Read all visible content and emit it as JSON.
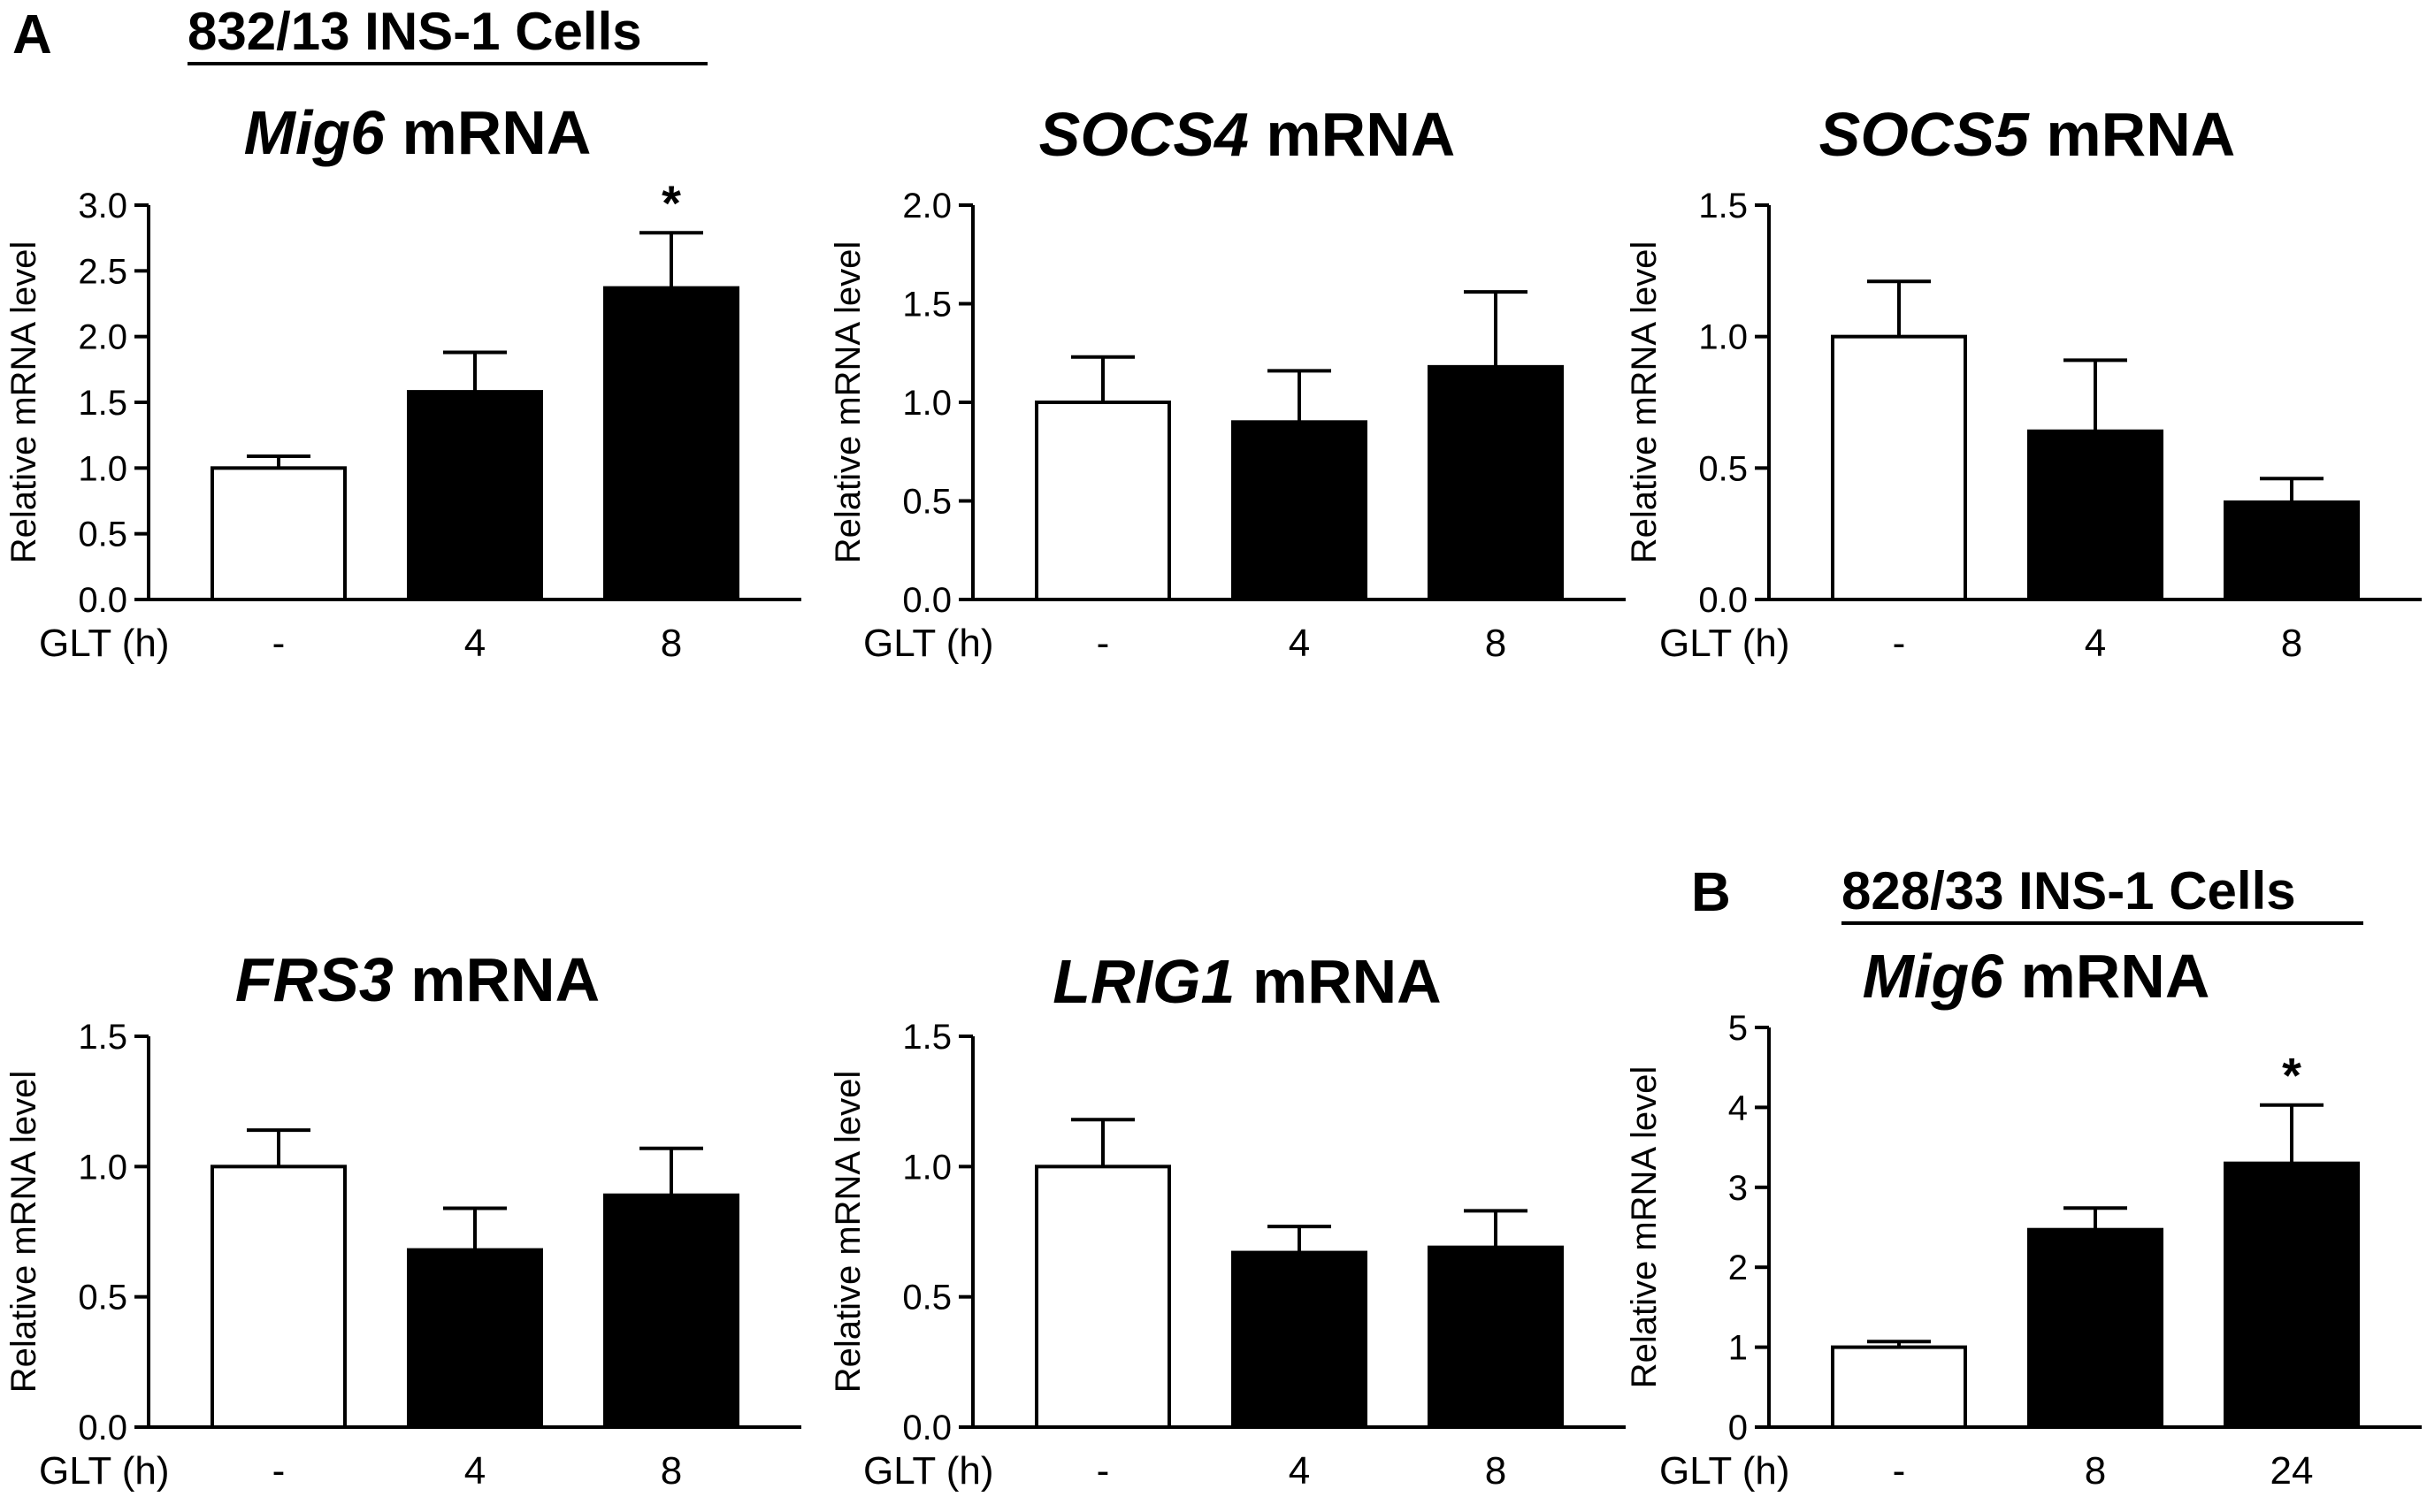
{
  "figure": {
    "panel_a_label": "A",
    "panel_a_header": "832/13 INS-1 Cells",
    "panel_b_label": "B",
    "panel_b_header": "828/33 INS-1 Cells"
  },
  "colors": {
    "control_fill": "#ffffff",
    "treated_fill": "#000000",
    "stroke": "#000000"
  },
  "chart_data": [
    {
      "id": "mig6-832",
      "type": "bar",
      "title_gene": "Mig6",
      "title_suffix": " mRNA",
      "xlabel": "GLT (h)",
      "ylabel": "Relative mRNA level",
      "categories": [
        "-",
        "4",
        "8"
      ],
      "values": [
        1.0,
        1.58,
        2.37
      ],
      "errors": [
        0.09,
        0.3,
        0.42
      ],
      "significance": [
        "",
        "",
        "*"
      ],
      "ylim": [
        0,
        3.0
      ],
      "yticks": [
        "0.0",
        "0.5",
        "1.0",
        "1.5",
        "2.0",
        "2.5",
        "3.0"
      ]
    },
    {
      "id": "socs4-832",
      "type": "bar",
      "title_gene": "SOCS4",
      "title_suffix": " mRNA",
      "xlabel": "GLT (h)",
      "ylabel": "Relative mRNA level",
      "categories": [
        "-",
        "4",
        "8"
      ],
      "values": [
        1.0,
        0.9,
        1.18
      ],
      "errors": [
        0.23,
        0.26,
        0.38
      ],
      "significance": [
        "",
        "",
        ""
      ],
      "ylim": [
        0,
        2.0
      ],
      "yticks": [
        "0.0",
        "0.5",
        "1.0",
        "1.5",
        "2.0"
      ]
    },
    {
      "id": "socs5-832",
      "type": "bar",
      "title_gene": "SOCS5",
      "title_suffix": " mRNA",
      "xlabel": "GLT (h)",
      "ylabel": "Relative mRNA level",
      "categories": [
        "-",
        "4",
        "8"
      ],
      "values": [
        1.0,
        0.64,
        0.37
      ],
      "errors": [
        0.21,
        0.27,
        0.09
      ],
      "significance": [
        "",
        "",
        ""
      ],
      "ylim": [
        0,
        1.5
      ],
      "yticks": [
        "0.0",
        "0.5",
        "1.0",
        "1.5"
      ]
    },
    {
      "id": "frs3-832",
      "type": "bar",
      "title_gene": "FRS3",
      "title_suffix": " mRNA",
      "xlabel": "GLT (h)",
      "ylabel": "Relative mRNA level",
      "categories": [
        "-",
        "4",
        "8"
      ],
      "values": [
        1.0,
        0.68,
        0.89
      ],
      "errors": [
        0.14,
        0.16,
        0.18
      ],
      "significance": [
        "",
        "",
        ""
      ],
      "ylim": [
        0,
        1.5
      ],
      "yticks": [
        "0.0",
        "0.5",
        "1.0",
        "1.5"
      ]
    },
    {
      "id": "lrig1-832",
      "type": "bar",
      "title_gene": "LRIG1",
      "title_suffix": " mRNA",
      "xlabel": "GLT (h)",
      "ylabel": "Relative mRNA level",
      "categories": [
        "-",
        "4",
        "8"
      ],
      "values": [
        1.0,
        0.67,
        0.69
      ],
      "errors": [
        0.18,
        0.1,
        0.14
      ],
      "significance": [
        "",
        "",
        ""
      ],
      "ylim": [
        0,
        1.5
      ],
      "yticks": [
        "0.0",
        "0.5",
        "1.0",
        "1.5"
      ]
    },
    {
      "id": "mig6-828",
      "type": "bar",
      "title_gene": "Mig6",
      "title_suffix": " mRNA",
      "xlabel": "GLT (h)",
      "ylabel": "Relative mRNA level",
      "categories": [
        "-",
        "8",
        "24"
      ],
      "values": [
        1.0,
        2.47,
        3.3
      ],
      "errors": [
        0.07,
        0.27,
        0.73
      ],
      "significance": [
        "",
        "",
        "*"
      ],
      "ylim": [
        0,
        5
      ],
      "yticks": [
        "0",
        "1",
        "2",
        "3",
        "4",
        "5"
      ]
    }
  ]
}
